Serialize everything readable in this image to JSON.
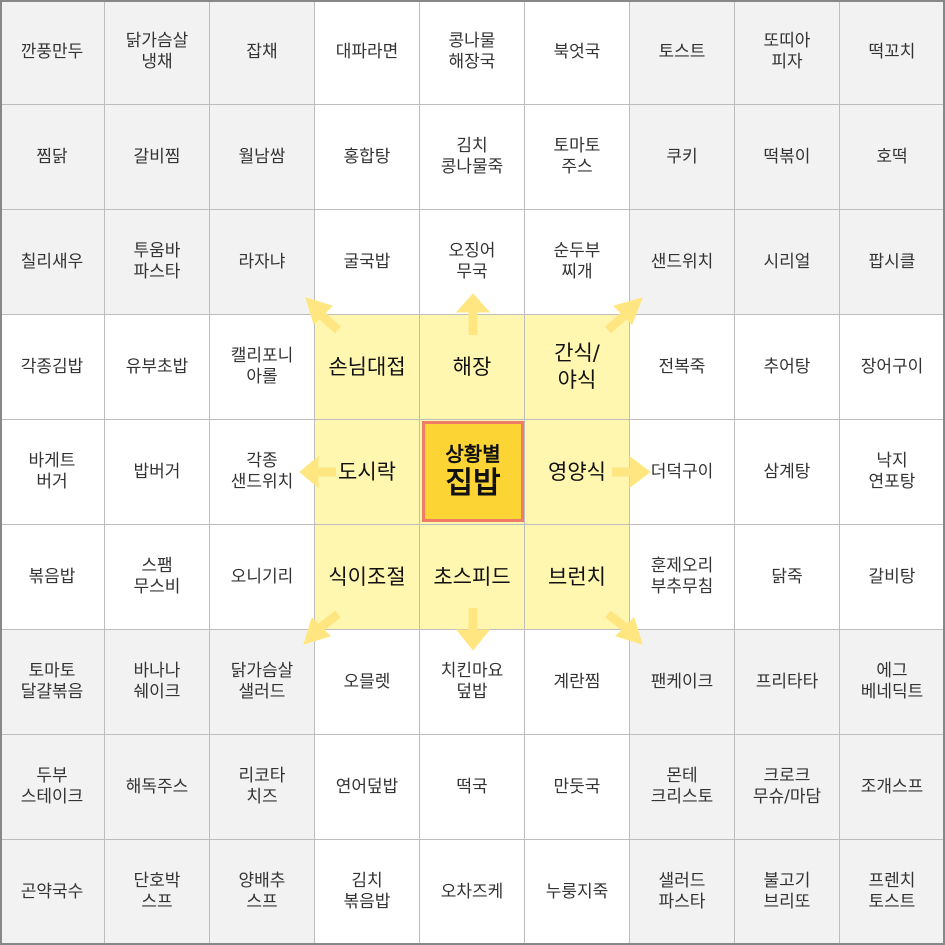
{
  "center": {
    "title": "상황별",
    "main": "집밥"
  },
  "categories": {
    "top_left": "손님대접",
    "top": "해장",
    "top_right": "간식/\n야식",
    "left": "도시락",
    "right": "영양식",
    "bottom_left": "식이조절",
    "bottom": "초스피드",
    "bottom_right": "브런치"
  },
  "colors": {
    "inner_yellow": "#fff7b0",
    "center_fill": "#fcd535",
    "center_border": "#f07b66",
    "arrow": "#ffe680",
    "grey_cell": "#f2f2f2"
  },
  "grid": [
    [
      "깐풍만두",
      "닭가슴살\n냉채",
      "잡채",
      "대파라면",
      "콩나물\n해장국",
      "북엇국",
      "토스트",
      "또띠아\n피자",
      "떡꼬치"
    ],
    [
      "찜닭",
      "갈비찜",
      "월남쌈",
      "홍합탕",
      "김치\n콩나물죽",
      "토마토\n주스",
      "쿠키",
      "떡볶이",
      "호떡"
    ],
    [
      "칠리새우",
      "투움바\n파스타",
      "라자냐",
      "굴국밥",
      "오징어\n무국",
      "순두부\n찌개",
      "샌드위치",
      "시리얼",
      "팝시클"
    ],
    [
      "각종김밥",
      "유부초밥",
      "캘리포니\n아롤",
      "손님대접",
      "해장",
      "간식/\n야식",
      "전복죽",
      "추어탕",
      "장어구이"
    ],
    [
      "바게트\n버거",
      "밥버거",
      "각종\n샌드위치",
      "도시락",
      "",
      "영양식",
      "더덕구이",
      "삼계탕",
      "낙지\n연포탕"
    ],
    [
      "볶음밥",
      "스팸\n무스비",
      "오니기리",
      "식이조절",
      "초스피드",
      "브런치",
      "훈제오리\n부추무침",
      "닭죽",
      "갈비탕"
    ],
    [
      "토마토\n달걀볶음",
      "바나나\n쉐이크",
      "닭가슴살\n샐러드",
      "오믈렛",
      "치킨마요\n덮밥",
      "계란찜",
      "팬케이크",
      "프리타타",
      "에그\n베네딕트"
    ],
    [
      "두부\n스테이크",
      "해독주스",
      "리코타\n치즈",
      "연어덮밥",
      "떡국",
      "만둣국",
      "몬테\n크리스토",
      "크로크\n무슈/마담",
      "조개스프"
    ],
    [
      "곤약국수",
      "단호박\n스프",
      "양배추\n스프",
      "김치\n볶음밥",
      "오차즈케",
      "누룽지죽",
      "샐러드\n파스타",
      "불고기\n브리또",
      "프렌치\n토스트"
    ]
  ]
}
